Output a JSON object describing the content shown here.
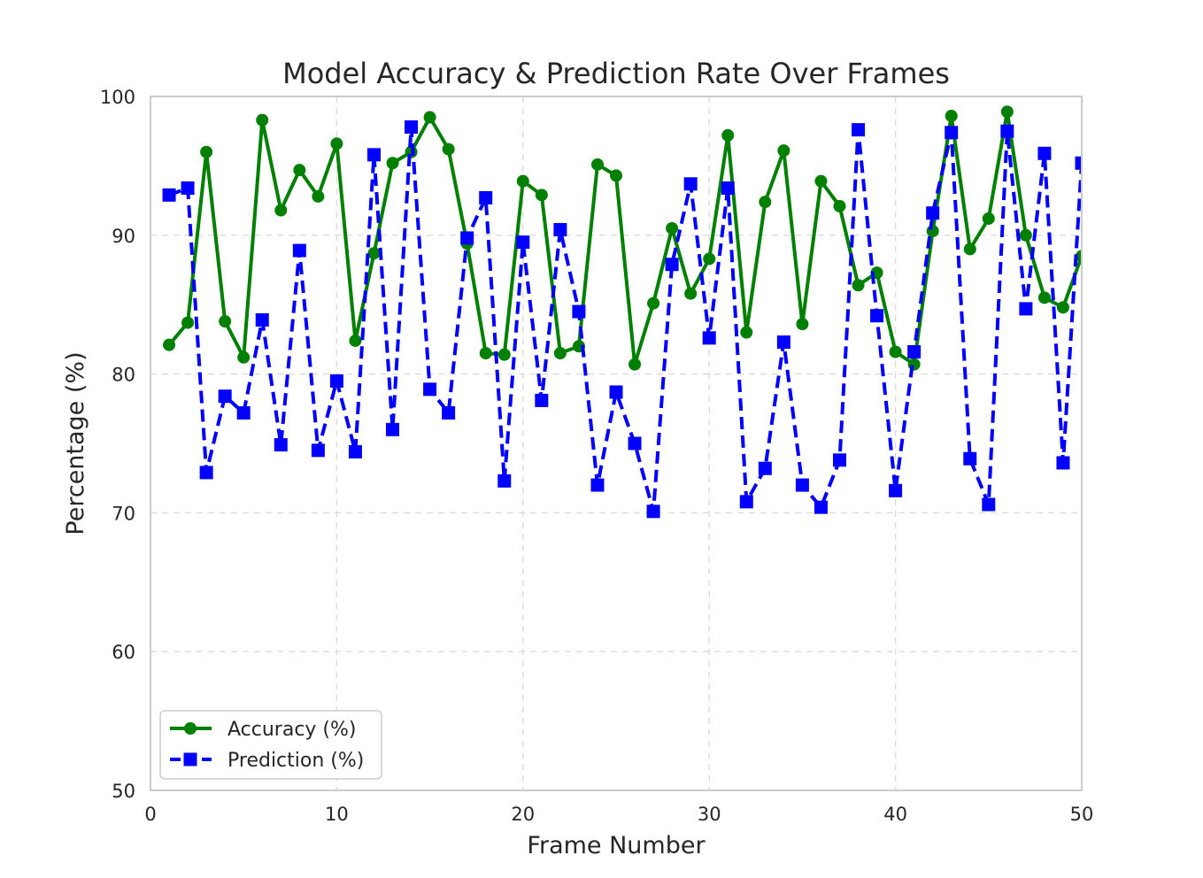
{
  "chart_data": {
    "type": "line",
    "title": "Model Accuracy & Prediction Rate Over Frames",
    "xlabel": "Frame Number",
    "ylabel": "Percentage (%)",
    "xlim": [
      0,
      50
    ],
    "ylim": [
      50,
      100
    ],
    "xticks": [
      "0",
      "10",
      "20",
      "30",
      "40",
      "50"
    ],
    "yticks": [
      "50",
      "60",
      "70",
      "80",
      "90",
      "100"
    ],
    "grid": true,
    "legend_position": "lower-left",
    "x": [
      1,
      2,
      3,
      4,
      5,
      6,
      7,
      8,
      9,
      10,
      11,
      12,
      13,
      14,
      15,
      16,
      17,
      18,
      19,
      20,
      21,
      22,
      23,
      24,
      25,
      26,
      27,
      28,
      29,
      30,
      31,
      32,
      33,
      34,
      35,
      36,
      37,
      38,
      39,
      40,
      41,
      42,
      43,
      44,
      45,
      46,
      47,
      48,
      49,
      50
    ],
    "series": [
      {
        "name": "Accuracy (%)",
        "color": "#008000",
        "line_style": "solid",
        "marker": "circle",
        "values": [
          82.1,
          83.7,
          96.0,
          83.8,
          81.2,
          98.3,
          91.8,
          94.7,
          92.8,
          96.6,
          82.4,
          88.7,
          95.2,
          96.0,
          98.5,
          96.2,
          89.4,
          81.5,
          81.4,
          93.9,
          92.9,
          81.5,
          82.0,
          95.1,
          94.3,
          80.7,
          85.1,
          90.5,
          85.8,
          88.3,
          97.2,
          83.0,
          92.4,
          96.1,
          83.6,
          93.9,
          92.1,
          86.4,
          87.3,
          81.6,
          80.7,
          90.3,
          98.6,
          89.0,
          91.2,
          98.9,
          90.0,
          85.5,
          84.8,
          88.5
        ]
      },
      {
        "name": "Prediction (%)",
        "color": "#0000ff",
        "line_style": "dashed",
        "marker": "square",
        "values": [
          92.9,
          93.4,
          72.9,
          78.4,
          77.2,
          83.9,
          74.9,
          88.9,
          74.5,
          79.5,
          74.4,
          95.8,
          76.0,
          97.8,
          78.9,
          77.2,
          89.8,
          92.7,
          72.3,
          89.5,
          78.1,
          90.4,
          84.5,
          72.0,
          78.7,
          75.0,
          70.1,
          87.9,
          93.7,
          82.6,
          93.4,
          70.8,
          73.2,
          82.3,
          72.0,
          70.4,
          73.8,
          97.6,
          84.2,
          71.6,
          81.6,
          91.6,
          97.4,
          73.9,
          70.6,
          97.5,
          84.7,
          95.9,
          73.6,
          95.2
        ]
      }
    ]
  }
}
